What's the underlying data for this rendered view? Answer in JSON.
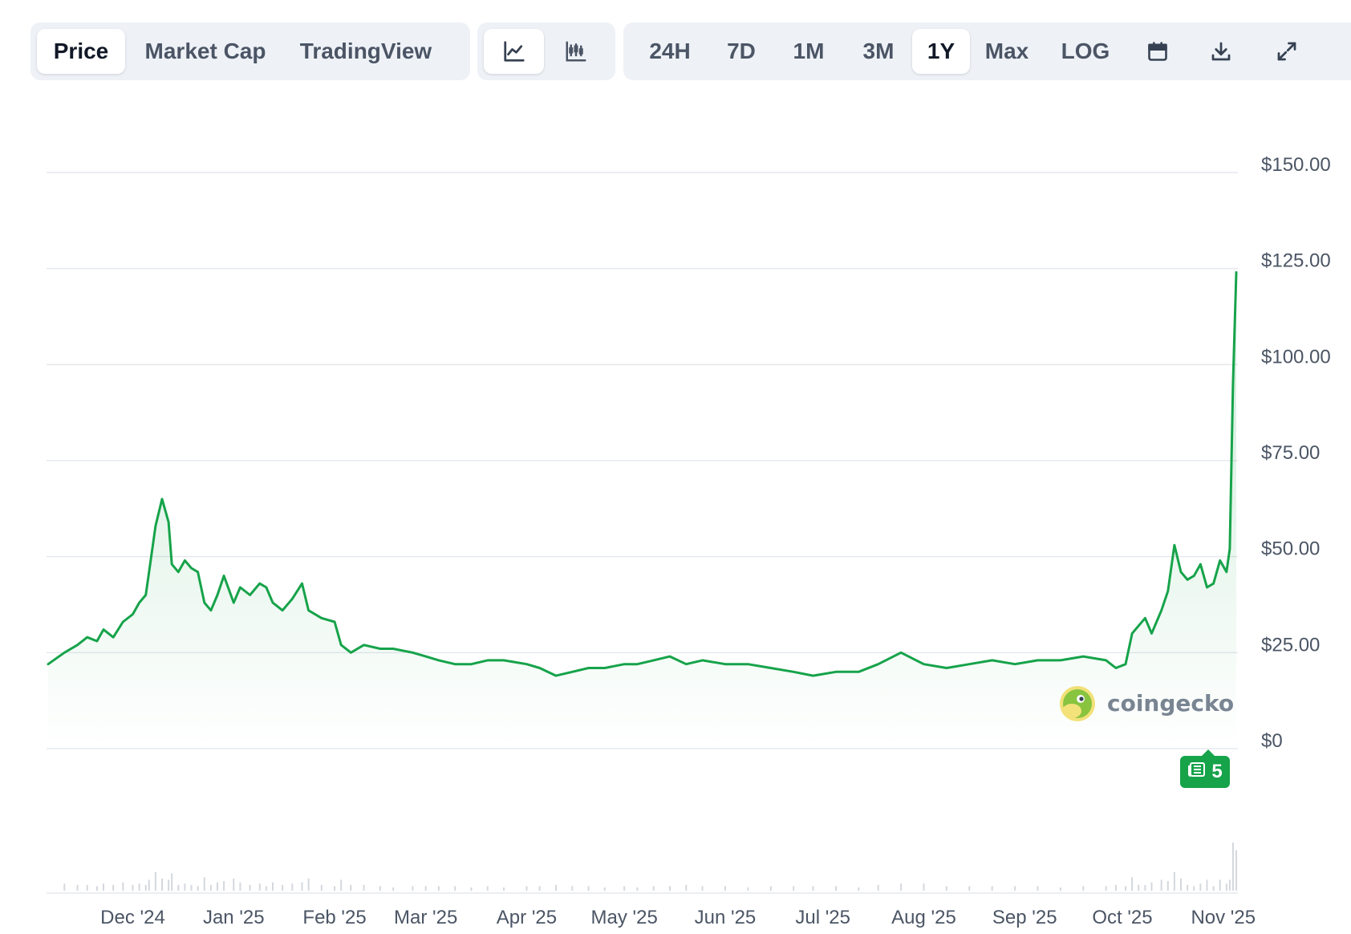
{
  "toolbar": {
    "data_tabs": [
      "Price",
      "Market Cap",
      "TradingView"
    ],
    "active_data_tab": "Price",
    "chart_types": [
      {
        "icon": "line-chart-icon"
      },
      {
        "icon": "candlestick-chart-icon"
      }
    ],
    "active_chart_type": "line-chart-icon",
    "ranges": [
      "24H",
      "7D",
      "1M",
      "3M",
      "1Y",
      "Max",
      "LOG"
    ],
    "active_range": "1Y",
    "actions": [
      {
        "icon": "calendar-icon"
      },
      {
        "icon": "download-icon"
      },
      {
        "icon": "expand-icon"
      }
    ]
  },
  "watermark": {
    "text": "coingecko",
    "icon": "coingecko-gecko-logo-icon"
  },
  "news_badge": {
    "count": "5",
    "icon": "news-icon"
  },
  "colors": {
    "line": "#16a34a",
    "grid": "#e5e8ed",
    "toolbar_bg": "#eef2f7",
    "badge": "#16a34a"
  },
  "chart_data": {
    "type": "line",
    "title": "",
    "xlabel": "",
    "ylabel": "",
    "x_ticks": [
      "Dec '24",
      "Jan '25",
      "Feb '25",
      "Mar '25",
      "Apr '25",
      "May '25",
      "Jun '25",
      "Jul '25",
      "Aug '25",
      "Sep '25",
      "Oct '25",
      "Nov '25"
    ],
    "x_range": [
      "2024-11-05",
      "2025-11-05"
    ],
    "y_ticks": [
      "$0",
      "$25.00",
      "$50.00",
      "$75.00",
      "$100.00",
      "$125.00",
      "$150.00"
    ],
    "ylim": [
      0,
      150
    ],
    "grid": true,
    "legend": "none",
    "series": [
      {
        "values": [
          [
            "2024-11-05",
            22
          ],
          [
            "2024-11-10",
            25
          ],
          [
            "2024-11-14",
            27
          ],
          [
            "2024-11-17",
            29
          ],
          [
            "2024-11-20",
            28
          ],
          [
            "2024-11-22",
            31
          ],
          [
            "2024-11-25",
            29
          ],
          [
            "2024-11-28",
            33
          ],
          [
            "2024-12-01",
            35
          ],
          [
            "2024-12-03",
            38
          ],
          [
            "2024-12-05",
            40
          ],
          [
            "2024-12-06",
            46
          ],
          [
            "2024-12-08",
            58
          ],
          [
            "2024-12-10",
            65
          ],
          [
            "2024-12-12",
            59
          ],
          [
            "2024-12-13",
            48
          ],
          [
            "2024-12-15",
            46
          ],
          [
            "2024-12-17",
            49
          ],
          [
            "2024-12-19",
            47
          ],
          [
            "2024-12-21",
            46
          ],
          [
            "2024-12-23",
            38
          ],
          [
            "2024-12-25",
            36
          ],
          [
            "2024-12-27",
            40
          ],
          [
            "2024-12-29",
            45
          ],
          [
            "2025-01-01",
            38
          ],
          [
            "2025-01-03",
            42
          ],
          [
            "2025-01-06",
            40
          ],
          [
            "2025-01-09",
            43
          ],
          [
            "2025-01-11",
            42
          ],
          [
            "2025-01-13",
            38
          ],
          [
            "2025-01-16",
            36
          ],
          [
            "2025-01-19",
            39
          ],
          [
            "2025-01-22",
            43
          ],
          [
            "2025-01-24",
            36
          ],
          [
            "2025-01-28",
            34
          ],
          [
            "2025-02-01",
            33
          ],
          [
            "2025-02-03",
            27
          ],
          [
            "2025-02-06",
            25
          ],
          [
            "2025-02-10",
            27
          ],
          [
            "2025-02-15",
            26
          ],
          [
            "2025-02-19",
            26
          ],
          [
            "2025-02-25",
            25
          ],
          [
            "2025-03-01",
            24
          ],
          [
            "2025-03-05",
            23
          ],
          [
            "2025-03-10",
            22
          ],
          [
            "2025-03-15",
            22
          ],
          [
            "2025-03-20",
            23
          ],
          [
            "2025-03-25",
            23
          ],
          [
            "2025-04-01",
            22
          ],
          [
            "2025-04-05",
            21
          ],
          [
            "2025-04-10",
            19
          ],
          [
            "2025-04-15",
            20
          ],
          [
            "2025-04-20",
            21
          ],
          [
            "2025-04-25",
            21
          ],
          [
            "2025-05-01",
            22
          ],
          [
            "2025-05-05",
            22
          ],
          [
            "2025-05-10",
            23
          ],
          [
            "2025-05-15",
            24
          ],
          [
            "2025-05-20",
            22
          ],
          [
            "2025-05-25",
            23
          ],
          [
            "2025-06-01",
            22
          ],
          [
            "2025-06-08",
            22
          ],
          [
            "2025-06-15",
            21
          ],
          [
            "2025-06-22",
            20
          ],
          [
            "2025-06-28",
            19
          ],
          [
            "2025-07-05",
            20
          ],
          [
            "2025-07-12",
            20
          ],
          [
            "2025-07-18",
            22
          ],
          [
            "2025-07-25",
            25
          ],
          [
            "2025-08-01",
            22
          ],
          [
            "2025-08-08",
            21
          ],
          [
            "2025-08-15",
            22
          ],
          [
            "2025-08-22",
            23
          ],
          [
            "2025-08-29",
            22
          ],
          [
            "2025-09-05",
            23
          ],
          [
            "2025-09-12",
            23
          ],
          [
            "2025-09-19",
            24
          ],
          [
            "2025-09-26",
            23
          ],
          [
            "2025-09-29",
            21
          ],
          [
            "2025-10-02",
            22
          ],
          [
            "2025-10-04",
            30
          ],
          [
            "2025-10-06",
            32
          ],
          [
            "2025-10-08",
            34
          ],
          [
            "2025-10-10",
            30
          ],
          [
            "2025-10-13",
            36
          ],
          [
            "2025-10-15",
            41
          ],
          [
            "2025-10-17",
            53
          ],
          [
            "2025-10-19",
            46
          ],
          [
            "2025-10-21",
            44
          ],
          [
            "2025-10-23",
            45
          ],
          [
            "2025-10-25",
            48
          ],
          [
            "2025-10-27",
            42
          ],
          [
            "2025-10-29",
            43
          ],
          [
            "2025-10-31",
            49
          ],
          [
            "2025-11-02",
            46
          ],
          [
            "2025-11-03",
            52
          ],
          [
            "2025-11-04",
            95
          ],
          [
            "2025-11-05",
            124
          ]
        ]
      }
    ]
  }
}
